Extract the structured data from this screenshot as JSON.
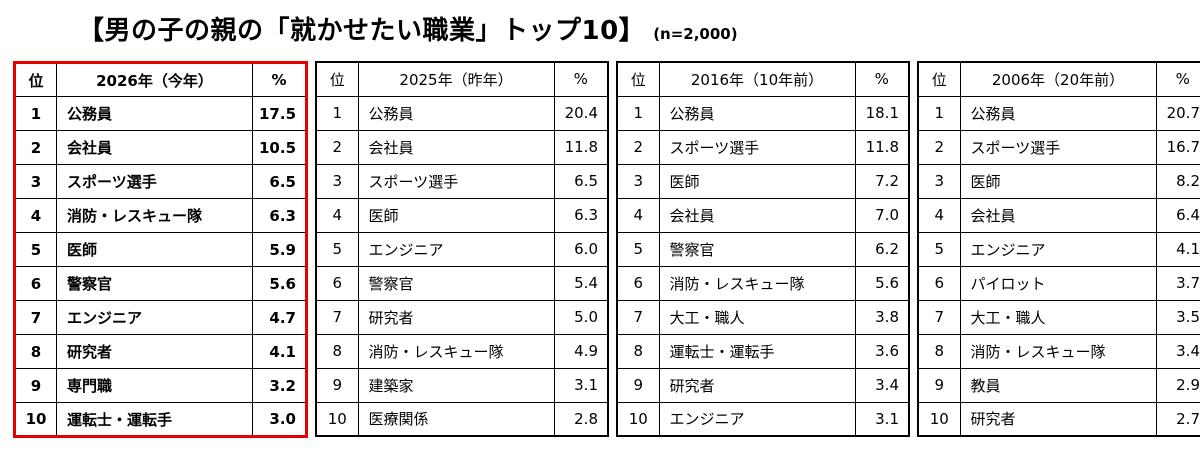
{
  "title": {
    "main": "【男の子の親の「就かせたい職業」トップ10】",
    "note": "(n=2,000)"
  },
  "colors": {
    "highlight_border": "#e60000",
    "table_border": "#000000",
    "background": "#ffffff",
    "text": "#000000"
  },
  "chart_data": {
    "type": "table",
    "title": "男の子の親の「就かせたい職業」トップ10",
    "sample_size": "n=2,000",
    "tables": [
      {
        "highlighted": true,
        "headers": {
          "rank": "位",
          "year": "2026年（今年）",
          "percent": "%"
        },
        "rows": [
          {
            "rank": "1",
            "job": "公務員",
            "pct": "17.5"
          },
          {
            "rank": "2",
            "job": "会社員",
            "pct": "10.5"
          },
          {
            "rank": "3",
            "job": "スポーツ選手",
            "pct": "6.5"
          },
          {
            "rank": "4",
            "job": "消防・レスキュー隊",
            "pct": "6.3"
          },
          {
            "rank": "5",
            "job": "医師",
            "pct": "5.9"
          },
          {
            "rank": "6",
            "job": "警察官",
            "pct": "5.6"
          },
          {
            "rank": "7",
            "job": "エンジニア",
            "pct": "4.7"
          },
          {
            "rank": "8",
            "job": "研究者",
            "pct": "4.1"
          },
          {
            "rank": "9",
            "job": "専門職",
            "pct": "3.2"
          },
          {
            "rank": "10",
            "job": "運転士・運転手",
            "pct": "3.0"
          }
        ]
      },
      {
        "highlighted": false,
        "headers": {
          "rank": "位",
          "year": "2025年（昨年）",
          "percent": "%"
        },
        "rows": [
          {
            "rank": "1",
            "job": "公務員",
            "pct": "20.4"
          },
          {
            "rank": "2",
            "job": "会社員",
            "pct": "11.8"
          },
          {
            "rank": "3",
            "job": "スポーツ選手",
            "pct": "6.5"
          },
          {
            "rank": "4",
            "job": "医師",
            "pct": "6.3"
          },
          {
            "rank": "5",
            "job": "エンジニア",
            "pct": "6.0"
          },
          {
            "rank": "6",
            "job": "警察官",
            "pct": "5.4"
          },
          {
            "rank": "7",
            "job": "研究者",
            "pct": "5.0"
          },
          {
            "rank": "8",
            "job": "消防・レスキュー隊",
            "pct": "4.9"
          },
          {
            "rank": "9",
            "job": "建築家",
            "pct": "3.1"
          },
          {
            "rank": "10",
            "job": "医療関係",
            "pct": "2.8"
          }
        ]
      },
      {
        "highlighted": false,
        "headers": {
          "rank": "位",
          "year": "2016年（10年前）",
          "percent": "%"
        },
        "rows": [
          {
            "rank": "1",
            "job": "公務員",
            "pct": "18.1"
          },
          {
            "rank": "2",
            "job": "スポーツ選手",
            "pct": "11.8"
          },
          {
            "rank": "3",
            "job": "医師",
            "pct": "7.2"
          },
          {
            "rank": "4",
            "job": "会社員",
            "pct": "7.0"
          },
          {
            "rank": "5",
            "job": "警察官",
            "pct": "6.2"
          },
          {
            "rank": "6",
            "job": "消防・レスキュー隊",
            "pct": "5.6"
          },
          {
            "rank": "7",
            "job": "大工・職人",
            "pct": "3.8"
          },
          {
            "rank": "8",
            "job": "運転士・運転手",
            "pct": "3.6"
          },
          {
            "rank": "9",
            "job": "研究者",
            "pct": "3.4"
          },
          {
            "rank": "10",
            "job": "エンジニア",
            "pct": "3.1"
          }
        ]
      },
      {
        "highlighted": false,
        "headers": {
          "rank": "位",
          "year": "2006年（20年前）",
          "percent": "%"
        },
        "rows": [
          {
            "rank": "1",
            "job": "公務員",
            "pct": "20.7"
          },
          {
            "rank": "2",
            "job": "スポーツ選手",
            "pct": "16.7"
          },
          {
            "rank": "3",
            "job": "医師",
            "pct": "8.2"
          },
          {
            "rank": "4",
            "job": "会社員",
            "pct": "6.4"
          },
          {
            "rank": "5",
            "job": "エンジニア",
            "pct": "4.1"
          },
          {
            "rank": "6",
            "job": "パイロット",
            "pct": "3.7"
          },
          {
            "rank": "7",
            "job": "大工・職人",
            "pct": "3.5"
          },
          {
            "rank": "8",
            "job": "消防・レスキュー隊",
            "pct": "3.4"
          },
          {
            "rank": "9",
            "job": "教員",
            "pct": "2.9"
          },
          {
            "rank": "10",
            "job": "研究者",
            "pct": "2.7"
          }
        ]
      }
    ]
  }
}
